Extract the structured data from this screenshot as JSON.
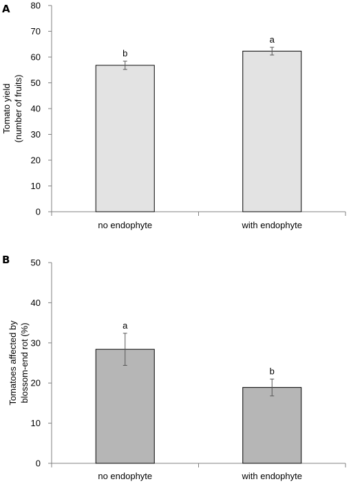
{
  "chart_data": [
    {
      "type": "bar",
      "panel": "A",
      "categories": [
        "no endophyte",
        "with endophyte"
      ],
      "values": [
        56.8,
        62.3
      ],
      "errors": [
        1.6,
        1.5
      ],
      "significance": [
        "b",
        "a"
      ],
      "ylabel_lines": [
        "Tomato yield",
        "(number of fruits)"
      ],
      "ylim": [
        0,
        80
      ],
      "yticks": [
        0,
        10,
        20,
        30,
        40,
        50,
        60,
        70,
        80
      ],
      "bar_color": "#e3e3e3",
      "grid": false
    },
    {
      "type": "bar",
      "panel": "B",
      "categories": [
        "no endophyte",
        "with endophyte"
      ],
      "values": [
        28.4,
        18.9
      ],
      "errors": [
        4.0,
        2.1
      ],
      "significance": [
        "a",
        "b"
      ],
      "ylabel_lines": [
        "Tomatoes affected by",
        "blossom-end rot (%)"
      ],
      "ylim": [
        0,
        50
      ],
      "yticks": [
        0,
        10,
        20,
        30,
        40,
        50
      ],
      "bar_color": "#b6b6b6",
      "grid": false
    }
  ]
}
